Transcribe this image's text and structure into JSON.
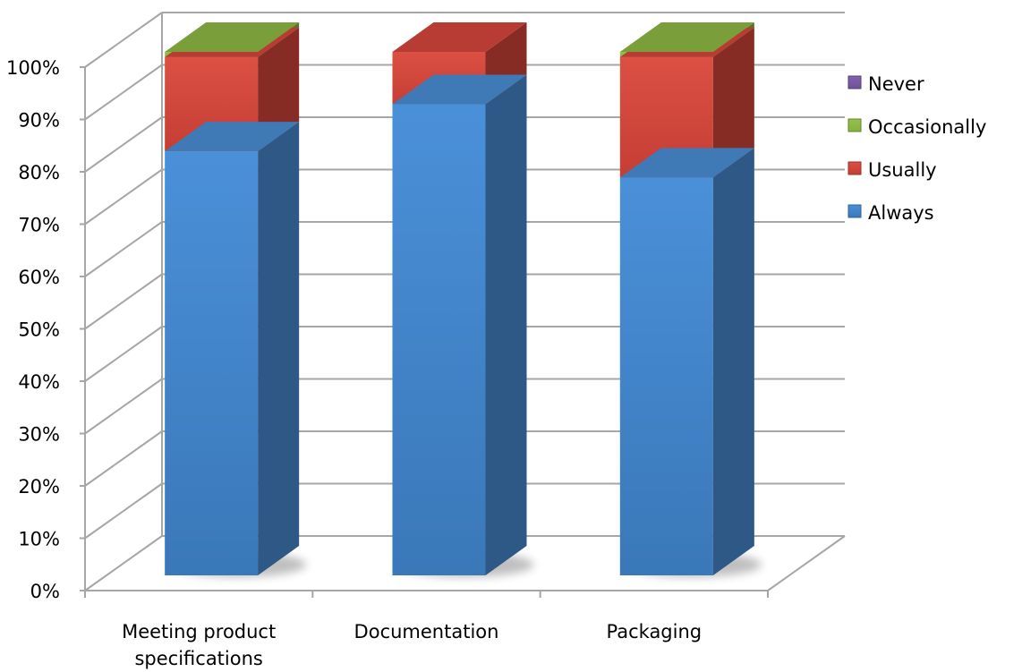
{
  "chart_data": {
    "type": "bar",
    "stacked": true,
    "percent_stacked": true,
    "three_d": true,
    "title": "",
    "xlabel": "",
    "ylabel": "",
    "ylim": [
      0,
      100
    ],
    "y_ticks": [
      "0%",
      "10%",
      "20%",
      "30%",
      "40%",
      "50%",
      "60%",
      "70%",
      "80%",
      "90%",
      "100%"
    ],
    "grid": true,
    "legend_position": "right",
    "categories": [
      "Meeting product specifications",
      "Documentation",
      "Packaging"
    ],
    "category_labels": [
      [
        "Meeting product",
        "specifications"
      ],
      [
        "Documentation"
      ],
      [
        "Packaging"
      ]
    ],
    "series": [
      {
        "name": "Always",
        "color": "#4a8ed6",
        "values": [
          81,
          90,
          76
        ]
      },
      {
        "name": "Usually",
        "color": "#d9463c",
        "values": [
          18,
          10,
          23
        ]
      },
      {
        "name": "Occasionally",
        "color": "#8fbb44",
        "values": [
          1,
          0,
          1
        ]
      },
      {
        "name": "Never",
        "color": "#7b5aa6",
        "values": [
          0,
          0,
          0
        ]
      }
    ],
    "legend_order": [
      "Never",
      "Occasionally",
      "Usually",
      "Always"
    ]
  }
}
